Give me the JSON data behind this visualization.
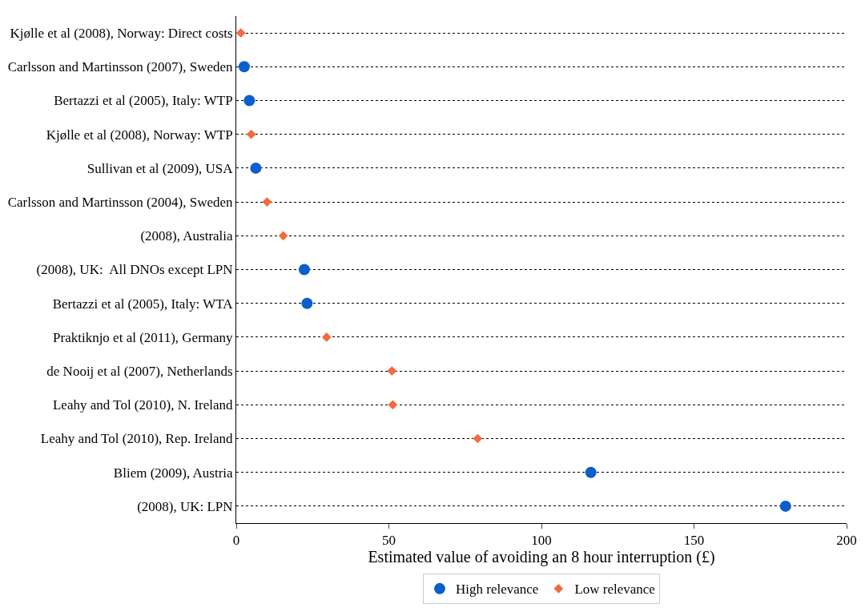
{
  "chart_data": {
    "type": "scatter",
    "orientation": "horizontal",
    "xlabel": "Estimated value of avoiding an 8 hour interruption (£)",
    "categories": [
      "Kjølle et al (2008), Norway: Direct costs",
      "Carlsson and Martinsson (2007), Sweden",
      "Bertazzi et al (2005), Italy: WTP",
      "Kjølle et al (2008), Norway: WTP",
      "Sullivan et al (2009), USA",
      "Carlsson and Martinsson (2004), Sweden",
      "(2008), Australia",
      "(2008), UK:  All DNOs except LPN",
      "Bertazzi et al (2005), Italy: WTA",
      "Praktiknjo et al (2011), Germany",
      "de Nooij et al (2007), Netherlands",
      "Leahy and Tol (2010), N. Ireland",
      "Leahy and Tol (2010), Rep. Ireland",
      "Bliem (2009), Austria",
      "(2008), UK: LPN"
    ],
    "series": [
      {
        "name": "High relevance",
        "color": "#0a5fcc",
        "marker": "circle",
        "values": [
          null,
          2.6,
          4.3,
          null,
          6.4,
          null,
          null,
          22.3,
          23.2,
          null,
          null,
          null,
          null,
          116.2,
          180
        ]
      },
      {
        "name": "Low relevance",
        "color": "#f26a3d",
        "marker": "diamond",
        "values": [
          1.5,
          null,
          null,
          4.9,
          null,
          10.1,
          15.4,
          null,
          null,
          29.6,
          51,
          51.3,
          79.1,
          null,
          null
        ]
      }
    ],
    "xlim": [
      0,
      200
    ],
    "xticks": [
      0,
      50,
      100,
      150,
      200
    ],
    "grid": "y",
    "line_style": "dotted",
    "legend": "bottom"
  }
}
